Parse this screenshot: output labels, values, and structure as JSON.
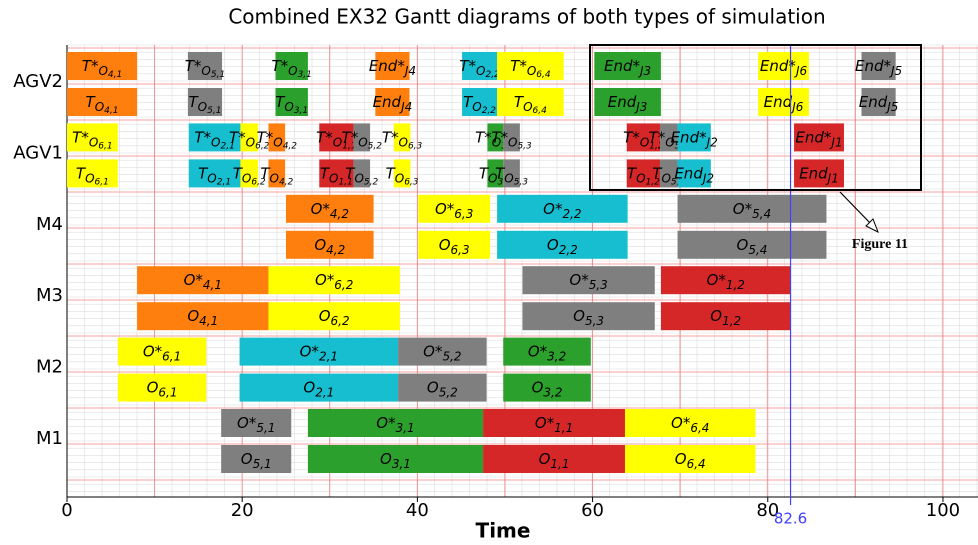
{
  "chart_data": {
    "type": "gantt",
    "title": "Combined EX32 Gantt diagrams of both types of simulation",
    "x_label": "Time",
    "xlim": [
      0,
      104
    ],
    "xticks": [
      0,
      20,
      40,
      60,
      80,
      100
    ],
    "x_gridlines": [
      0,
      10,
      20,
      30,
      40,
      50,
      60,
      70,
      80,
      90,
      100
    ],
    "marker_line": {
      "value": 82.6,
      "color": "#4040ff"
    },
    "annotation": "Figure 11",
    "rows": [
      {
        "name": "AGV2",
        "tasks": [
          {
            "start": 0,
            "end": 8,
            "color": "#ff7f0e",
            "labels": [
              [
                "T*",
                "O",
                "4,1"
              ],
              [
                "T",
                "O",
                "4,1"
              ]
            ]
          },
          {
            "start": 13.8,
            "end": 17.7,
            "color": "#7f7f7f",
            "labels": [
              [
                "T*",
                "O",
                "5,1"
              ],
              [
                "T",
                "O",
                "5,1"
              ]
            ]
          },
          {
            "start": 23.8,
            "end": 27.5,
            "color": "#2ca02c",
            "labels": [
              [
                "T*",
                "O",
                "3,1"
              ],
              [
                "T",
                "O",
                "3,1"
              ]
            ]
          },
          {
            "start": 35.2,
            "end": 39.1,
            "color": "#ff7f0e",
            "labels": [
              [
                "End*",
                "J4"
              ],
              [
                "End",
                "J4"
              ]
            ]
          },
          {
            "start": 45.1,
            "end": 49.1,
            "color": "#17becf",
            "labels": [
              [
                "T*",
                "O",
                "2,2"
              ],
              [
                "T",
                "O",
                "2,2"
              ]
            ]
          },
          {
            "start": 49.1,
            "end": 56.7,
            "color": "#ffff00",
            "labels": [
              [
                "T*",
                "O",
                "6,4"
              ],
              [
                "T",
                "O",
                "6,4"
              ]
            ]
          },
          {
            "start": 60.2,
            "end": 67.8,
            "color": "#2ca02c",
            "labels": [
              [
                "End*",
                "J3"
              ],
              [
                "End",
                "J3"
              ]
            ]
          },
          {
            "start": 78.9,
            "end": 84.7,
            "color": "#ffff00",
            "labels": [
              [
                "End*",
                "J6"
              ],
              [
                "End",
                "J6"
              ]
            ]
          },
          {
            "start": 90.7,
            "end": 94.6,
            "color": "#7f7f7f",
            "labels": [
              [
                "End*",
                "J5"
              ],
              [
                "End",
                "J5"
              ]
            ]
          }
        ]
      },
      {
        "name": "AGV1",
        "tasks": [
          {
            "start": 0,
            "end": 5.8,
            "color": "#ffff00",
            "labels": [
              [
                "T*",
                "O",
                "6,1"
              ],
              [
                "T",
                "O",
                "6,1"
              ]
            ]
          },
          {
            "start": 13.9,
            "end": 19.8,
            "color": "#17becf",
            "labels": [
              [
                "T*",
                "O",
                "2,1"
              ],
              [
                "T",
                "O",
                "2,1"
              ]
            ]
          },
          {
            "start": 19.8,
            "end": 21.8,
            "color": "#ffff00",
            "labels": [
              [
                "T*",
                "O",
                "6,2"
              ],
              [
                "T",
                "O",
                "6,2"
              ]
            ]
          },
          {
            "start": 23,
            "end": 24.9,
            "color": "#ff7f0e",
            "labels": [
              [
                "T*",
                "O",
                "4,2"
              ],
              [
                "T",
                "O",
                "4,2"
              ]
            ]
          },
          {
            "start": 28.8,
            "end": 32.7,
            "color": "#d62728",
            "labels": [
              [
                "T*",
                "O",
                "1,1"
              ],
              [
                "T",
                "O",
                "1,1"
              ]
            ]
          },
          {
            "start": 32.7,
            "end": 34.6,
            "color": "#7f7f7f",
            "labels": [
              [
                "T*",
                "O",
                "5,2"
              ],
              [
                "T",
                "O",
                "5,2"
              ]
            ]
          },
          {
            "start": 37.3,
            "end": 39.2,
            "color": "#ffff00",
            "labels": [
              [
                "T*",
                "O",
                "6,3"
              ],
              [
                "T",
                "O",
                "6,3"
              ]
            ]
          },
          {
            "start": 48,
            "end": 49.8,
            "color": "#2ca02c",
            "labels": [
              [
                "T*",
                "O",
                "3,2"
              ],
              [
                "T",
                "O",
                "3,2"
              ]
            ]
          },
          {
            "start": 49.8,
            "end": 51.7,
            "color": "#7f7f7f",
            "labels": [
              [
                "T*",
                "O",
                "5,3"
              ],
              [
                "T",
                "O",
                "5,3"
              ]
            ]
          },
          {
            "start": 63.9,
            "end": 67.7,
            "color": "#d62728",
            "labels": [
              [
                "T*",
                "O",
                "1,2"
              ],
              [
                "T",
                "O",
                "1,2"
              ]
            ]
          },
          {
            "start": 67.7,
            "end": 69.7,
            "color": "#7f7f7f",
            "labels": [
              [
                "T*",
                "O",
                "5,4"
              ],
              [
                "T",
                "O",
                "5,4"
              ]
            ]
          },
          {
            "start": 69.7,
            "end": 73.5,
            "color": "#17becf",
            "labels": [
              [
                "End*",
                "J2"
              ],
              [
                "End",
                "J2"
              ]
            ]
          },
          {
            "start": 83,
            "end": 88.7,
            "color": "#d62728",
            "labels": [
              [
                "End*",
                "J1"
              ],
              [
                "End",
                "J1"
              ]
            ]
          }
        ]
      },
      {
        "name": "M4",
        "tasks": [
          {
            "start": 25,
            "end": 35,
            "color": "#ff7f0e",
            "labels": [
              [
                "O*",
                "4,2"
              ],
              [
                "O",
                "4,2"
              ]
            ]
          },
          {
            "start": 40.1,
            "end": 48.3,
            "color": "#ffff00",
            "labels": [
              [
                "O*",
                "6,3"
              ],
              [
                "O",
                "6,3"
              ]
            ]
          },
          {
            "start": 49.1,
            "end": 64,
            "color": "#17becf",
            "labels": [
              [
                "O*",
                "2,2"
              ],
              [
                "O",
                "2,2"
              ]
            ]
          },
          {
            "start": 69.7,
            "end": 86.7,
            "color": "#7f7f7f",
            "labels": [
              [
                "O*",
                "5,4"
              ],
              [
                "O",
                "5,4"
              ]
            ]
          }
        ]
      },
      {
        "name": "M3",
        "tasks": [
          {
            "start": 8,
            "end": 23,
            "color": "#ff7f0e",
            "labels": [
              [
                "O*",
                "4,1"
              ],
              [
                "O",
                "4,1"
              ]
            ]
          },
          {
            "start": 23,
            "end": 38,
            "color": "#ffff00",
            "labels": [
              [
                "O*",
                "6,2"
              ],
              [
                "O",
                "6,2"
              ]
            ]
          },
          {
            "start": 52,
            "end": 67.1,
            "color": "#7f7f7f",
            "labels": [
              [
                "O*",
                "5,3"
              ],
              [
                "O",
                "5,3"
              ]
            ]
          },
          {
            "start": 67.8,
            "end": 82.6,
            "color": "#d62728",
            "labels": [
              [
                "O*",
                "1,2"
              ],
              [
                "O",
                "1,2"
              ]
            ]
          }
        ]
      },
      {
        "name": "M2",
        "tasks": [
          {
            "start": 5.8,
            "end": 15.9,
            "color": "#ffff00",
            "labels": [
              [
                "O*",
                "6,1"
              ],
              [
                "O",
                "6,1"
              ]
            ]
          },
          {
            "start": 19.7,
            "end": 37.8,
            "color": "#17becf",
            "labels": [
              [
                "O*",
                "2,1"
              ],
              [
                "O",
                "2,1"
              ]
            ]
          },
          {
            "start": 37.8,
            "end": 47.9,
            "color": "#7f7f7f",
            "labels": [
              [
                "O*",
                "5,2"
              ],
              [
                "O",
                "5,2"
              ]
            ]
          },
          {
            "start": 49.8,
            "end": 59.8,
            "color": "#2ca02c",
            "labels": [
              [
                "O*",
                "3,2"
              ],
              [
                "O",
                "3,2"
              ]
            ]
          }
        ]
      },
      {
        "name": "M1",
        "tasks": [
          {
            "start": 17.6,
            "end": 25.6,
            "color": "#7f7f7f",
            "labels": [
              [
                "O*",
                "5,1"
              ],
              [
                "O",
                "5,1"
              ]
            ]
          },
          {
            "start": 27.5,
            "end": 47.5,
            "color": "#2ca02c",
            "labels": [
              [
                "O*",
                "3,1"
              ],
              [
                "O",
                "3,1"
              ]
            ]
          },
          {
            "start": 47.5,
            "end": 63.7,
            "color": "#d62728",
            "labels": [
              [
                "O*",
                "1,1"
              ],
              [
                "O",
                "1,1"
              ]
            ]
          },
          {
            "start": 63.7,
            "end": 78.6,
            "color": "#ffff00",
            "labels": [
              [
                "O*",
                "6,4"
              ],
              [
                "O",
                "6,4"
              ]
            ]
          }
        ]
      }
    ]
  }
}
